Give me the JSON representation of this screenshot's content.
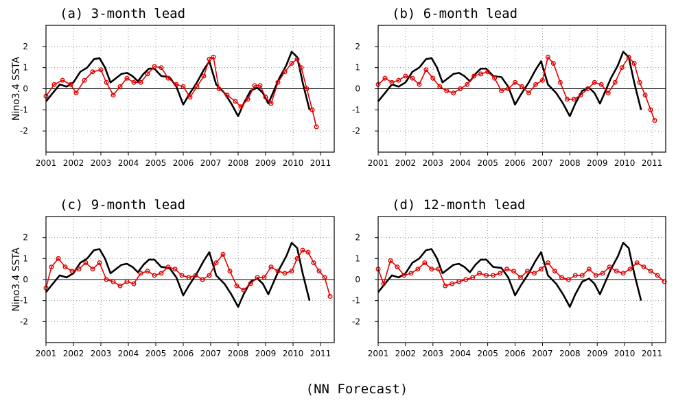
{
  "figure": {
    "caption": "(NN Forecast)"
  },
  "colors": {
    "observed": "#000000",
    "forecast": "#e00000",
    "grid": "#808080"
  },
  "chart_data": [
    {
      "type": "line",
      "title": "(a) 3-month lead",
      "ylabel": "Nino3.4 SSTA",
      "xlim": [
        2001,
        2011.5
      ],
      "ylim": [
        -3,
        3
      ],
      "xticks": [
        "2001",
        "2002",
        "2003",
        "2004",
        "2005",
        "2006",
        "2007",
        "2008",
        "2009",
        "2010",
        "2011"
      ],
      "yticks": [
        "2",
        "1",
        "0",
        "-1",
        "-2"
      ],
      "grid": true,
      "series": [
        {
          "style": "line",
          "x": [
            2001.0,
            2001.25,
            2001.5,
            2001.75,
            2002.0,
            2002.25,
            2002.5,
            2002.75,
            2002.95,
            2003.15,
            2003.35,
            2003.55,
            2003.75,
            2003.95,
            2004.15,
            2004.35,
            2004.55,
            2004.75,
            2004.95,
            2005.2,
            2005.5,
            2005.75,
            2006.0,
            2006.2,
            2006.5,
            2006.75,
            2006.95,
            2007.2,
            2007.5,
            2007.75,
            2008.0,
            2008.2,
            2008.45,
            2008.7,
            2008.9,
            2009.1,
            2009.3,
            2009.5,
            2009.75,
            2009.95,
            2010.15,
            2010.35,
            2010.6
          ],
          "y": [
            -0.6,
            -0.2,
            0.2,
            0.1,
            0.3,
            0.8,
            1.0,
            1.4,
            1.45,
            1.0,
            0.3,
            0.5,
            0.7,
            0.75,
            0.6,
            0.35,
            0.7,
            0.95,
            0.95,
            0.6,
            0.55,
            0.1,
            -0.75,
            -0.3,
            0.3,
            0.9,
            1.3,
            0.2,
            -0.2,
            -0.7,
            -1.3,
            -0.7,
            -0.1,
            0.05,
            -0.2,
            -0.7,
            -0.1,
            0.5,
            1.1,
            1.75,
            1.5,
            0.3,
            -1.0
          ]
        },
        {
          "style": "markers",
          "x": [
            2001.0,
            2001.3,
            2001.6,
            2001.9,
            2002.1,
            2002.4,
            2002.7,
            2003.0,
            2003.2,
            2003.45,
            2003.7,
            2003.95,
            2004.2,
            2004.45,
            2004.7,
            2004.95,
            2005.2,
            2005.45,
            2005.75,
            2006.0,
            2006.25,
            2006.5,
            2006.75,
            2006.95,
            2007.1,
            2007.3,
            2007.6,
            2007.9,
            2008.1,
            2008.35,
            2008.6,
            2008.8,
            2009.0,
            2009.2,
            2009.45,
            2009.7,
            2009.95,
            2010.15,
            2010.3,
            2010.5,
            2010.7,
            2010.85
          ],
          "y": [
            -0.35,
            0.2,
            0.4,
            0.2,
            -0.2,
            0.4,
            0.8,
            0.9,
            0.3,
            -0.3,
            0.1,
            0.5,
            0.3,
            0.3,
            0.7,
            1.05,
            1.0,
            0.5,
            0.2,
            0.1,
            -0.4,
            0.1,
            0.6,
            1.4,
            1.5,
            0.0,
            -0.3,
            -0.6,
            -0.85,
            -0.5,
            0.15,
            0.15,
            -0.4,
            -0.7,
            0.3,
            0.8,
            1.2,
            1.4,
            1.0,
            0.0,
            -1.0,
            -1.8
          ]
        }
      ]
    },
    {
      "type": "line",
      "title": "(b) 6-month lead",
      "ylabel": "",
      "xlim": [
        2001,
        2011.5
      ],
      "ylim": [
        -3,
        3
      ],
      "xticks": [
        "2001",
        "2002",
        "2003",
        "2004",
        "2005",
        "2006",
        "2007",
        "2008",
        "2009",
        "2010",
        "2011"
      ],
      "yticks": [
        "2",
        "1",
        "0",
        "-1",
        "-2"
      ],
      "grid": true,
      "series": [
        {
          "style": "line",
          "x": [
            2001.0,
            2001.25,
            2001.5,
            2001.75,
            2002.0,
            2002.25,
            2002.5,
            2002.75,
            2002.95,
            2003.15,
            2003.35,
            2003.55,
            2003.75,
            2003.95,
            2004.15,
            2004.35,
            2004.55,
            2004.75,
            2004.95,
            2005.2,
            2005.5,
            2005.75,
            2006.0,
            2006.2,
            2006.5,
            2006.75,
            2006.95,
            2007.2,
            2007.5,
            2007.75,
            2008.0,
            2008.2,
            2008.45,
            2008.7,
            2008.9,
            2009.1,
            2009.3,
            2009.5,
            2009.75,
            2009.95,
            2010.15,
            2010.35,
            2010.6
          ],
          "y": [
            -0.6,
            -0.2,
            0.2,
            0.1,
            0.3,
            0.8,
            1.0,
            1.4,
            1.45,
            1.0,
            0.3,
            0.5,
            0.7,
            0.75,
            0.6,
            0.35,
            0.7,
            0.95,
            0.95,
            0.6,
            0.55,
            0.1,
            -0.75,
            -0.3,
            0.3,
            0.9,
            1.3,
            0.2,
            -0.2,
            -0.7,
            -1.3,
            -0.7,
            -0.1,
            0.05,
            -0.2,
            -0.7,
            -0.1,
            0.5,
            1.1,
            1.75,
            1.5,
            0.3,
            -1.0
          ]
        },
        {
          "style": "markers",
          "x": [
            2001.0,
            2001.25,
            2001.5,
            2001.75,
            2002.0,
            2002.25,
            2002.5,
            2002.75,
            2003.0,
            2003.25,
            2003.5,
            2003.75,
            2004.0,
            2004.25,
            2004.5,
            2004.75,
            2005.0,
            2005.25,
            2005.5,
            2005.75,
            2006.0,
            2006.25,
            2006.5,
            2006.75,
            2007.0,
            2007.2,
            2007.4,
            2007.65,
            2007.9,
            2008.15,
            2008.4,
            2008.65,
            2008.9,
            2009.15,
            2009.4,
            2009.65,
            2009.9,
            2010.15,
            2010.35,
            2010.55,
            2010.75,
            2010.95,
            2011.1
          ],
          "y": [
            0.2,
            0.5,
            0.3,
            0.4,
            0.6,
            0.5,
            0.2,
            0.9,
            0.5,
            0.1,
            -0.1,
            -0.2,
            0.0,
            0.2,
            0.6,
            0.7,
            0.8,
            0.5,
            -0.1,
            0.0,
            0.3,
            0.1,
            -0.2,
            0.2,
            0.4,
            1.5,
            1.2,
            0.3,
            -0.5,
            -0.5,
            -0.3,
            0.0,
            0.3,
            0.2,
            -0.2,
            0.3,
            1.0,
            1.5,
            1.2,
            0.3,
            -0.3,
            -1.0,
            -1.5
          ]
        }
      ]
    },
    {
      "type": "line",
      "title": "(c) 9-month lead",
      "ylabel": "Nino3.4 SSTA",
      "xlim": [
        2001,
        2011.5
      ],
      "ylim": [
        -3,
        3
      ],
      "xticks": [
        "2001",
        "2002",
        "2003",
        "2004",
        "2005",
        "2006",
        "2007",
        "2008",
        "2009",
        "2010",
        "2011"
      ],
      "yticks": [
        "2",
        "1",
        "0",
        "-1",
        "-2"
      ],
      "grid": true,
      "series": [
        {
          "style": "line",
          "x": [
            2001.0,
            2001.25,
            2001.5,
            2001.75,
            2002.0,
            2002.25,
            2002.5,
            2002.75,
            2002.95,
            2003.15,
            2003.35,
            2003.55,
            2003.75,
            2003.95,
            2004.15,
            2004.35,
            2004.55,
            2004.75,
            2004.95,
            2005.2,
            2005.5,
            2005.75,
            2006.0,
            2006.2,
            2006.5,
            2006.75,
            2006.95,
            2007.2,
            2007.5,
            2007.75,
            2008.0,
            2008.2,
            2008.45,
            2008.7,
            2008.9,
            2009.1,
            2009.3,
            2009.5,
            2009.75,
            2009.95,
            2010.15,
            2010.35,
            2010.6
          ],
          "y": [
            -0.6,
            -0.2,
            0.2,
            0.1,
            0.3,
            0.8,
            1.0,
            1.4,
            1.45,
            1.0,
            0.3,
            0.5,
            0.7,
            0.75,
            0.6,
            0.35,
            0.7,
            0.95,
            0.95,
            0.6,
            0.55,
            0.1,
            -0.75,
            -0.3,
            0.3,
            0.9,
            1.3,
            0.2,
            -0.2,
            -0.7,
            -1.3,
            -0.7,
            -0.1,
            0.05,
            -0.2,
            -0.7,
            -0.1,
            0.5,
            1.1,
            1.75,
            1.5,
            0.3,
            -1.0
          ]
        },
        {
          "style": "markers",
          "x": [
            2001.0,
            2001.2,
            2001.45,
            2001.7,
            2001.95,
            2002.2,
            2002.45,
            2002.7,
            2002.95,
            2003.2,
            2003.45,
            2003.7,
            2003.95,
            2004.2,
            2004.45,
            2004.7,
            2004.95,
            2005.2,
            2005.45,
            2005.7,
            2005.95,
            2006.2,
            2006.45,
            2006.7,
            2006.95,
            2007.2,
            2007.45,
            2007.7,
            2007.95,
            2008.2,
            2008.45,
            2008.7,
            2008.95,
            2009.2,
            2009.45,
            2009.7,
            2009.95,
            2010.15,
            2010.35,
            2010.55,
            2010.75,
            2010.95,
            2011.15,
            2011.35
          ],
          "y": [
            -0.4,
            0.6,
            1.0,
            0.6,
            0.4,
            0.5,
            0.8,
            0.5,
            0.8,
            0.0,
            -0.1,
            -0.3,
            -0.1,
            -0.2,
            0.3,
            0.4,
            0.2,
            0.3,
            0.6,
            0.5,
            0.2,
            0.1,
            0.2,
            0.0,
            0.2,
            0.8,
            1.2,
            0.4,
            -0.3,
            -0.5,
            -0.2,
            0.1,
            0.1,
            0.6,
            0.4,
            0.3,
            0.4,
            1.0,
            1.4,
            1.3,
            0.8,
            0.4,
            0.1,
            -0.8
          ]
        }
      ]
    },
    {
      "type": "line",
      "title": "(d) 12-month lead",
      "ylabel": "",
      "xlim": [
        2001,
        2011.5
      ],
      "ylim": [
        -3,
        3
      ],
      "xticks": [
        "2001",
        "2002",
        "2003",
        "2004",
        "2005",
        "2006",
        "2007",
        "2008",
        "2009",
        "2010",
        "2011"
      ],
      "yticks": [
        "2",
        "1",
        "0",
        "-1",
        "-2"
      ],
      "grid": true,
      "series": [
        {
          "style": "line",
          "x": [
            2001.0,
            2001.25,
            2001.5,
            2001.75,
            2002.0,
            2002.25,
            2002.5,
            2002.75,
            2002.95,
            2003.15,
            2003.35,
            2003.55,
            2003.75,
            2003.95,
            2004.15,
            2004.35,
            2004.55,
            2004.75,
            2004.95,
            2005.2,
            2005.5,
            2005.75,
            2006.0,
            2006.2,
            2006.5,
            2006.75,
            2006.95,
            2007.2,
            2007.5,
            2007.75,
            2008.0,
            2008.2,
            2008.45,
            2008.7,
            2008.9,
            2009.1,
            2009.3,
            2009.5,
            2009.75,
            2009.95,
            2010.15,
            2010.35,
            2010.6
          ],
          "y": [
            -0.6,
            -0.2,
            0.2,
            0.1,
            0.3,
            0.8,
            1.0,
            1.4,
            1.45,
            1.0,
            0.3,
            0.5,
            0.7,
            0.75,
            0.6,
            0.35,
            0.7,
            0.95,
            0.95,
            0.6,
            0.55,
            0.1,
            -0.75,
            -0.3,
            0.3,
            0.9,
            1.3,
            0.2,
            -0.2,
            -0.7,
            -1.3,
            -0.7,
            -0.1,
            0.05,
            -0.2,
            -0.7,
            -0.1,
            0.5,
            1.1,
            1.75,
            1.5,
            0.3,
            -1.0
          ]
        },
        {
          "style": "markers",
          "x": [
            2001.0,
            2001.2,
            2001.45,
            2001.7,
            2001.95,
            2002.2,
            2002.45,
            2002.7,
            2002.95,
            2003.2,
            2003.45,
            2003.7,
            2003.95,
            2004.2,
            2004.45,
            2004.7,
            2004.95,
            2005.2,
            2005.45,
            2005.7,
            2005.95,
            2006.2,
            2006.45,
            2006.7,
            2006.95,
            2007.2,
            2007.45,
            2007.7,
            2007.95,
            2008.2,
            2008.45,
            2008.7,
            2008.95,
            2009.2,
            2009.45,
            2009.7,
            2009.95,
            2010.2,
            2010.45,
            2010.7,
            2010.95,
            2011.2,
            2011.45
          ],
          "y": [
            0.5,
            -0.2,
            0.9,
            0.6,
            0.2,
            0.3,
            0.5,
            0.8,
            0.5,
            0.5,
            -0.3,
            -0.2,
            -0.1,
            0.0,
            0.1,
            0.3,
            0.2,
            0.2,
            0.3,
            0.5,
            0.4,
            0.1,
            0.4,
            0.3,
            0.5,
            0.8,
            0.4,
            0.1,
            0.0,
            0.2,
            0.2,
            0.5,
            0.2,
            0.3,
            0.6,
            0.4,
            0.3,
            0.5,
            0.8,
            0.6,
            0.4,
            0.2,
            -0.1
          ]
        }
      ]
    }
  ]
}
